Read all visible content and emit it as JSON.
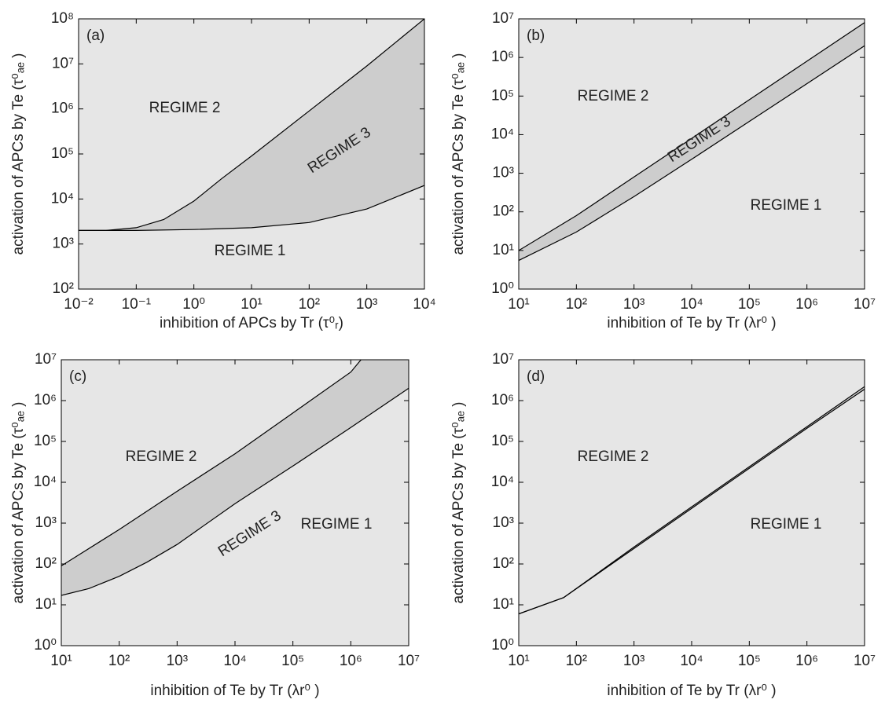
{
  "chart_data": [
    {
      "type": "line",
      "panel_label": "(a)",
      "xscale": "log",
      "yscale": "log",
      "background": "#e6e6e6",
      "fill_color": "#cdcdcd",
      "xlabel": "inhibition of APCs by Tr (τ⁰ᵣ)",
      "ylabel": "activation of APCs by Te (τ⁰ₐₑ )",
      "annotations": [
        "REGIME 2",
        "REGIME 3",
        "REGIME 1"
      ],
      "xlim": [
        0.01,
        10000
      ],
      "ylim": [
        100,
        100000000
      ],
      "xticks": [
        {
          "value": 0.01,
          "label": "10⁻²"
        },
        {
          "value": 0.1,
          "label": "10⁻¹"
        },
        {
          "value": 1,
          "label": "10⁰"
        },
        {
          "value": 10,
          "label": "10¹"
        },
        {
          "value": 100,
          "label": "10²"
        },
        {
          "value": 1000,
          "label": "10³"
        },
        {
          "value": 10000,
          "label": "10⁴"
        }
      ],
      "yticks": [
        {
          "value": 100,
          "label": "10²"
        },
        {
          "value": 1000,
          "label": "10³"
        },
        {
          "value": 10000,
          "label": "10⁴"
        },
        {
          "value": 100000,
          "label": "10⁵"
        },
        {
          "value": 1000000,
          "label": "10⁶"
        },
        {
          "value": 10000000,
          "label": "10⁷"
        },
        {
          "value": 100000000,
          "label": "10⁸"
        }
      ],
      "series": [
        {
          "color": "#000000",
          "x": [
            0.01,
            0.03,
            0.1,
            0.3,
            1,
            3,
            10,
            100,
            1000,
            10000
          ],
          "values": [
            2000,
            2000,
            2300,
            3500,
            9000,
            28000,
            90000,
            900000,
            9000000,
            100000000
          ]
        },
        {
          "color": "#000000",
          "x": [
            0.01,
            0.1,
            1,
            10,
            100,
            1000,
            10000
          ],
          "values": [
            2000,
            2000,
            2100,
            2300,
            3000,
            6000,
            20000
          ]
        }
      ]
    },
    {
      "type": "line",
      "panel_label": "(b)",
      "xscale": "log",
      "yscale": "log",
      "background": "#e6e6e6",
      "fill_color": "#cdcdcd",
      "xlabel": "inhibition of Te by Tr (λr⁰ )",
      "ylabel": "activation of APCs by Te (τ⁰ₐₑ )",
      "annotations": [
        "REGIME 2",
        "REGIME 3",
        "REGIME 1"
      ],
      "xlim": [
        10,
        10000000
      ],
      "ylim": [
        1,
        10000000
      ],
      "xticks": [
        {
          "value": 10,
          "label": "10¹"
        },
        {
          "value": 100,
          "label": "10²"
        },
        {
          "value": 1000,
          "label": "10³"
        },
        {
          "value": 10000,
          "label": "10⁴"
        },
        {
          "value": 100000,
          "label": "10⁵"
        },
        {
          "value": 1000000,
          "label": "10⁶"
        },
        {
          "value": 10000000,
          "label": "10⁷"
        }
      ],
      "yticks": [
        {
          "value": 1,
          "label": "10⁰"
        },
        {
          "value": 10,
          "label": "10¹"
        },
        {
          "value": 100,
          "label": "10²"
        },
        {
          "value": 1000,
          "label": "10³"
        },
        {
          "value": 10000,
          "label": "10⁴"
        },
        {
          "value": 100000,
          "label": "10⁵"
        },
        {
          "value": 1000000,
          "label": "10⁶"
        },
        {
          "value": 10000000,
          "label": "10⁷"
        }
      ],
      "series": [
        {
          "color": "#000000",
          "x": [
            10,
            100,
            1000,
            10000,
            100000,
            1000000,
            10000000
          ],
          "values": [
            10,
            80,
            800,
            8000,
            80000,
            800000,
            8000000
          ]
        },
        {
          "color": "#000000",
          "x": [
            10,
            100,
            1000,
            10000,
            100000,
            1000000,
            10000000
          ],
          "values": [
            5.5,
            30,
            250,
            2300,
            22000,
            210000,
            2000000
          ]
        }
      ]
    },
    {
      "type": "line",
      "panel_label": "(c)",
      "xscale": "log",
      "yscale": "log",
      "background": "#e6e6e6",
      "fill_color": "#cdcdcd",
      "xlabel": "inhibition of Te by Tr (λr⁰ )",
      "ylabel": "activation of APCs by Te (τ⁰ₐₑ )",
      "annotations": [
        "REGIME 2",
        "REGIME 3",
        "REGIME 1"
      ],
      "xlim": [
        10,
        10000000
      ],
      "ylim": [
        1,
        10000000
      ],
      "xticks": [
        {
          "value": 10,
          "label": "10¹"
        },
        {
          "value": 100,
          "label": "10²"
        },
        {
          "value": 1000,
          "label": "10³"
        },
        {
          "value": 10000,
          "label": "10⁴"
        },
        {
          "value": 100000,
          "label": "10⁵"
        },
        {
          "value": 1000000,
          "label": "10⁶"
        },
        {
          "value": 10000000,
          "label": "10⁷"
        }
      ],
      "yticks": [
        {
          "value": 1,
          "label": "10⁰"
        },
        {
          "value": 10,
          "label": "10¹"
        },
        {
          "value": 100,
          "label": "10²"
        },
        {
          "value": 1000,
          "label": "10³"
        },
        {
          "value": 10000,
          "label": "10⁴"
        },
        {
          "value": 100000,
          "label": "10⁵"
        },
        {
          "value": 1000000,
          "label": "10⁶"
        },
        {
          "value": 10000000,
          "label": "10⁷"
        }
      ],
      "series": [
        {
          "color": "#000000",
          "x": [
            10,
            100,
            1000,
            10000,
            100000,
            1000000,
            1500000
          ],
          "values": [
            90,
            700,
            6000,
            50000,
            500000,
            5000000,
            10000000
          ]
        },
        {
          "color": "#000000",
          "x": [
            10,
            30,
            100,
            300,
            1000,
            10000,
            100000,
            1000000,
            10000000
          ],
          "values": [
            17,
            25,
            50,
            110,
            300,
            3000,
            25000,
            220000,
            2000000
          ]
        }
      ]
    },
    {
      "type": "line",
      "panel_label": "(d)",
      "xscale": "log",
      "yscale": "log",
      "background": "#e6e6e6",
      "fill_color": "#cdcdcd",
      "xlabel": "inhibition of Te by Tr (λr⁰ )",
      "ylabel": "activation of APCs by Te (τ⁰ₐₑ )",
      "annotations": [
        "REGIME 2",
        "REGIME 1"
      ],
      "xlim": [
        10,
        10000000
      ],
      "ylim": [
        1,
        10000000
      ],
      "xticks": [
        {
          "value": 10,
          "label": "10¹"
        },
        {
          "value": 100,
          "label": "10²"
        },
        {
          "value": 1000,
          "label": "10³"
        },
        {
          "value": 10000,
          "label": "10⁴"
        },
        {
          "value": 100000,
          "label": "10⁵"
        },
        {
          "value": 1000000,
          "label": "10⁶"
        },
        {
          "value": 10000000,
          "label": "10⁷"
        }
      ],
      "yticks": [
        {
          "value": 1,
          "label": "10⁰"
        },
        {
          "value": 10,
          "label": "10¹"
        },
        {
          "value": 100,
          "label": "10²"
        },
        {
          "value": 1000,
          "label": "10³"
        },
        {
          "value": 10000,
          "label": "10⁴"
        },
        {
          "value": 100000,
          "label": "10⁵"
        },
        {
          "value": 1000000,
          "label": "10⁶"
        },
        {
          "value": 10000000,
          "label": "10⁷"
        }
      ],
      "series": [
        {
          "color": "#000000",
          "x": [
            10,
            60,
            1000,
            10000,
            100000,
            1000000,
            10000000
          ],
          "values": [
            6,
            15,
            260,
            2500,
            24000,
            230000,
            2200000
          ]
        },
        {
          "color": "#000000",
          "x": [
            10,
            60,
            1000,
            10000,
            100000,
            1000000,
            10000000
          ],
          "values": [
            6,
            15,
            240,
            2300,
            22000,
            210000,
            1900000
          ]
        }
      ]
    }
  ]
}
